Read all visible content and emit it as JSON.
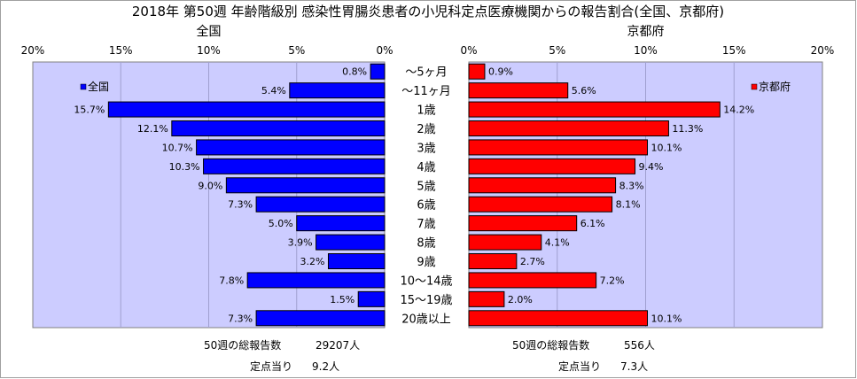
{
  "title": "2018年 第50週 年齢階級別 感染性胃腸炎患者の小児科定点医療機関からの報告割合(全国、京都府)",
  "chart_data": [
    {
      "type": "bar",
      "orientation": "horizontal",
      "panel_title": "全国",
      "legend": "全国",
      "color": "#0000ff",
      "xlim": [
        0,
        20
      ],
      "ticks": [
        "20%",
        "15%",
        "10%",
        "5%",
        "0%"
      ],
      "categories": [
        "～5ヶ月",
        "～11ヶ月",
        "1歳",
        "2歳",
        "3歳",
        "4歳",
        "5歳",
        "6歳",
        "7歳",
        "8歳",
        "9歳",
        "10～14歳",
        "15～19歳",
        "20歳以上"
      ],
      "values": [
        0.8,
        5.4,
        15.7,
        12.1,
        10.7,
        10.3,
        9.0,
        7.3,
        5.0,
        3.9,
        3.2,
        7.8,
        1.5,
        7.3
      ],
      "value_labels": [
        "0.8%",
        "5.4%",
        "15.7%",
        "12.1%",
        "10.7%",
        "10.3%",
        "9.0%",
        "7.3%",
        "5.0%",
        "3.9%",
        "3.2%",
        "7.8%",
        "1.5%",
        "7.3%"
      ],
      "total_label": "50週の総報告数",
      "total_value": "29207人",
      "per_site_label": "定点当り",
      "per_site_value": "9.2人"
    },
    {
      "type": "bar",
      "orientation": "horizontal",
      "panel_title": "京都府",
      "legend": "京都府",
      "color": "#ff0000",
      "xlim": [
        0,
        20
      ],
      "ticks": [
        "0%",
        "5%",
        "10%",
        "15%",
        "20%"
      ],
      "categories": [
        "～5ヶ月",
        "～11ヶ月",
        "1歳",
        "2歳",
        "3歳",
        "4歳",
        "5歳",
        "6歳",
        "7歳",
        "8歳",
        "9歳",
        "10～14歳",
        "15～19歳",
        "20歳以上"
      ],
      "values": [
        0.9,
        5.6,
        14.2,
        11.3,
        10.1,
        9.4,
        8.3,
        8.1,
        6.1,
        4.1,
        2.7,
        7.2,
        2.0,
        10.1
      ],
      "value_labels": [
        "0.9%",
        "5.6%",
        "14.2%",
        "11.3%",
        "10.1%",
        "9.4%",
        "8.3%",
        "8.1%",
        "6.1%",
        "4.1%",
        "2.7%",
        "7.2%",
        "2.0%",
        "10.1%"
      ],
      "total_label": "50週の総報告数",
      "total_value": "556人",
      "per_site_label": "定点当り",
      "per_site_value": "7.3人"
    }
  ]
}
